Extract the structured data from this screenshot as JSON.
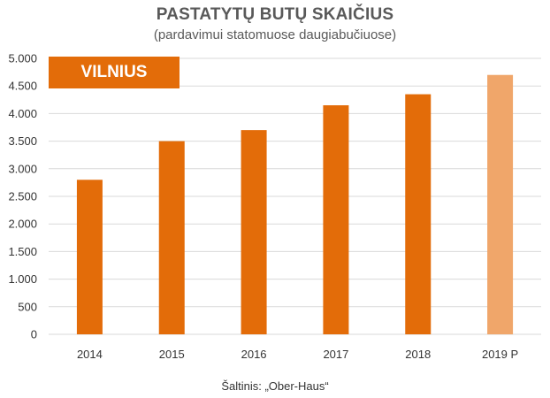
{
  "title": "PASTATYTŲ BUTŲ SKAIČIUS",
  "subtitle": "(pardavimui statomuose daugiabučiuose)",
  "badge": "VILNIUS",
  "source": "Šaltinis: „Ober-Haus“",
  "chart_data": {
    "type": "bar",
    "categories": [
      "2014",
      "2015",
      "2016",
      "2017",
      "2018",
      "2019 P"
    ],
    "values": [
      2800,
      3500,
      3700,
      4150,
      4350,
      4700
    ],
    "projected": [
      false,
      false,
      false,
      false,
      false,
      true
    ],
    "ylim": [
      0,
      5000
    ],
    "yticks": [
      0,
      500,
      1000,
      1500,
      2000,
      2500,
      3000,
      3500,
      4000,
      4500,
      5000
    ],
    "ytick_labels": [
      "0",
      "500",
      "1.000",
      "1.500",
      "2.000",
      "2.500",
      "3.000",
      "3.500",
      "4.000",
      "4.500",
      "5.000"
    ],
    "grid": true,
    "colors": {
      "bar": "#E36C09",
      "projected_bar": "#F0A66A",
      "grid": "#D9D9D9"
    }
  }
}
